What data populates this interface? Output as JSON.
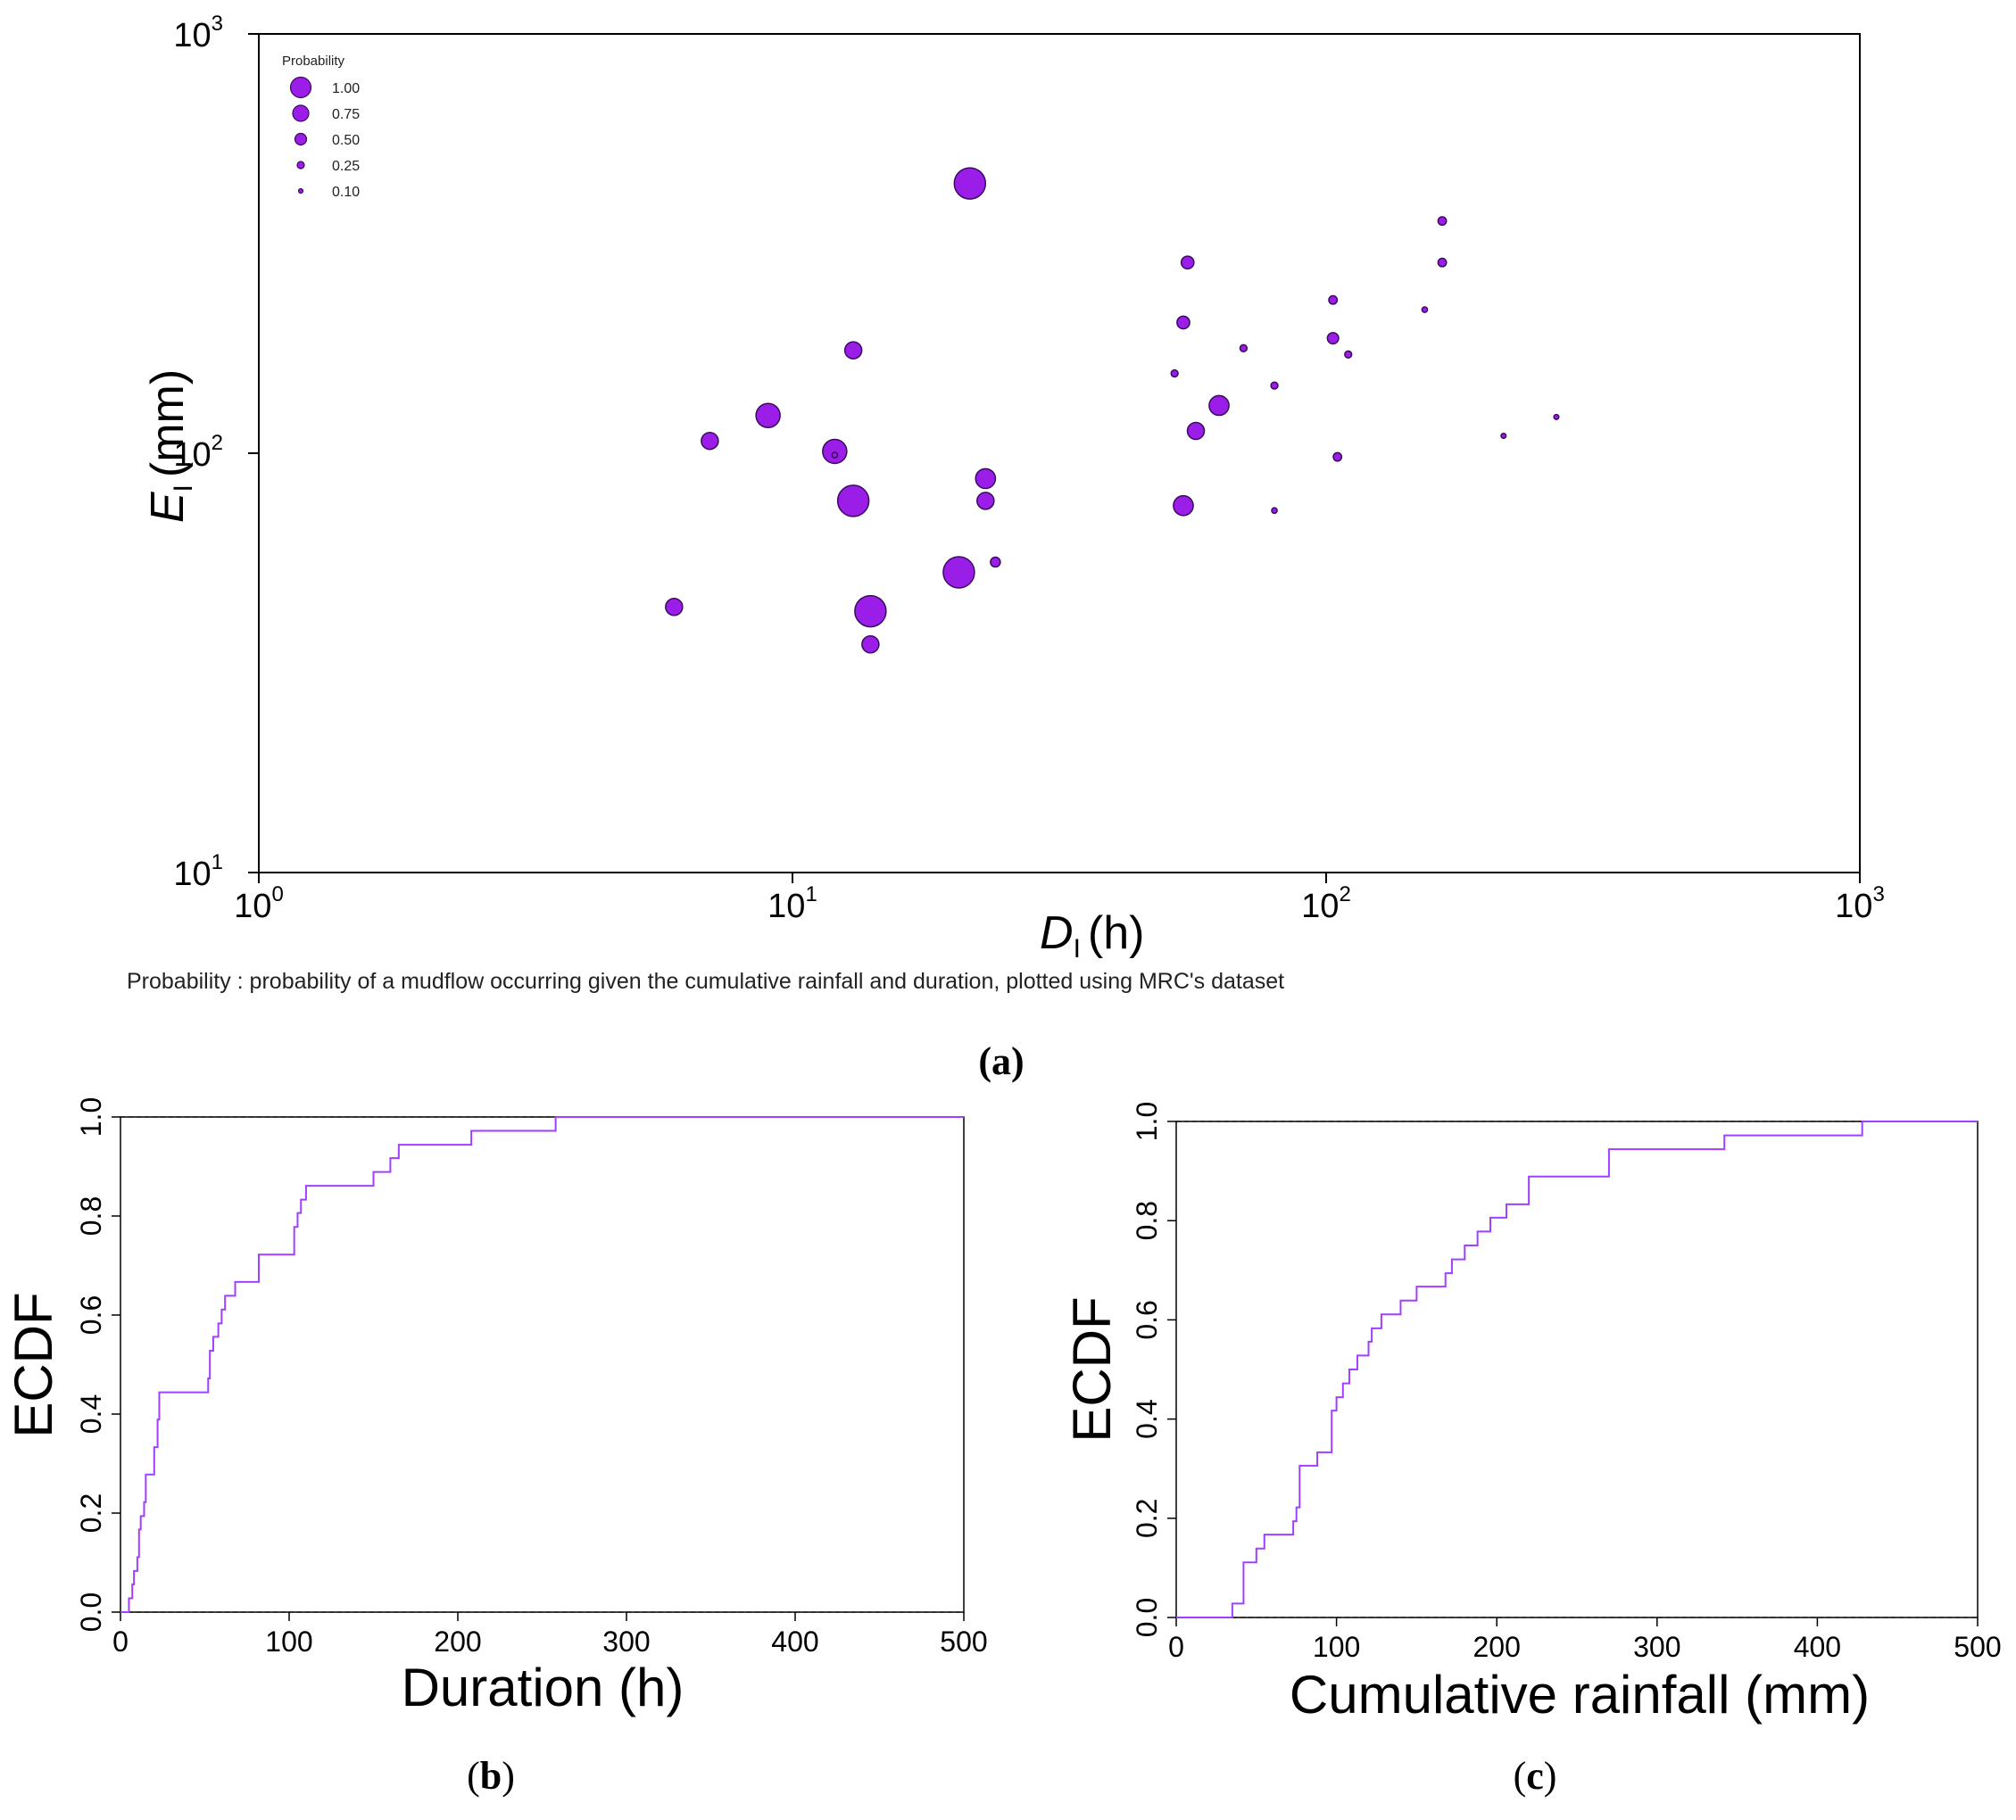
{
  "figure": {
    "caption_a": "(a)",
    "caption_b": "(b)",
    "caption_c": "(c)",
    "note_a": "Probability : probability of a mudflow occurring given the cumulative rainfall and duration, plotted using MRC's dataset"
  },
  "colors": {
    "marker_fill": "#9b1ee8",
    "marker_stroke": "#3a0a5e",
    "ecdf_line": "#a040ff",
    "axis": "#000000"
  },
  "chart_data": [
    {
      "id": "a",
      "type": "scatter",
      "scale": "log-log",
      "xlabel_main": "D",
      "xlabel_sub": "I",
      "xlabel_unit": "(h)",
      "ylabel_main": "E",
      "ylabel_sub": "I",
      "ylabel_unit": "(mm)",
      "xlim": [
        1,
        1000
      ],
      "ylim": [
        10,
        1000
      ],
      "xticks": [
        {
          "v": 1,
          "base": "10",
          "exp": "0"
        },
        {
          "v": 10,
          "base": "10",
          "exp": "1"
        },
        {
          "v": 100,
          "base": "10",
          "exp": "2"
        },
        {
          "v": 1000,
          "base": "10",
          "exp": "3"
        }
      ],
      "yticks": [
        {
          "v": 10,
          "base": "10",
          "exp": "1"
        },
        {
          "v": 100,
          "base": "10",
          "exp": "2"
        },
        {
          "v": 1000,
          "base": "10",
          "exp": "3"
        }
      ],
      "legend": {
        "title": "Probability",
        "position": "top-left",
        "entries": [
          {
            "label": "1.00",
            "p": 1.0
          },
          {
            "label": "0.75",
            "p": 0.75
          },
          {
            "label": "0.50",
            "p": 0.5
          },
          {
            "label": "0.25",
            "p": 0.25
          },
          {
            "label": "0.10",
            "p": 0.1
          }
        ]
      },
      "points": [
        {
          "x": 21.5,
          "y": 440,
          "p": 1.0
        },
        {
          "x": 13.0,
          "y": 77,
          "p": 1.0
        },
        {
          "x": 14.0,
          "y": 42,
          "p": 1.0
        },
        {
          "x": 20.5,
          "y": 52,
          "p": 1.0
        },
        {
          "x": 9.0,
          "y": 123,
          "p": 0.75
        },
        {
          "x": 12.0,
          "y": 101,
          "p": 0.75
        },
        {
          "x": 12.0,
          "y": 99,
          "p": 0.1
        },
        {
          "x": 13.0,
          "y": 176,
          "p": 0.5
        },
        {
          "x": 7.0,
          "y": 107,
          "p": 0.5
        },
        {
          "x": 6.0,
          "y": 43,
          "p": 0.5
        },
        {
          "x": 14.0,
          "y": 35,
          "p": 0.5
        },
        {
          "x": 23.0,
          "y": 87,
          "p": 0.6
        },
        {
          "x": 23.0,
          "y": 77,
          "p": 0.5
        },
        {
          "x": 24.0,
          "y": 55,
          "p": 0.25
        },
        {
          "x": 54,
          "y": 75,
          "p": 0.6
        },
        {
          "x": 57,
          "y": 113,
          "p": 0.5
        },
        {
          "x": 63,
          "y": 130,
          "p": 0.6
        },
        {
          "x": 55,
          "y": 285,
          "p": 0.35
        },
        {
          "x": 54,
          "y": 205,
          "p": 0.35
        },
        {
          "x": 52,
          "y": 155,
          "p": 0.15
        },
        {
          "x": 70,
          "y": 178,
          "p": 0.15
        },
        {
          "x": 80,
          "y": 145,
          "p": 0.15
        },
        {
          "x": 80,
          "y": 73,
          "p": 0.1
        },
        {
          "x": 103,
          "y": 232,
          "p": 0.2
        },
        {
          "x": 103,
          "y": 188,
          "p": 0.3
        },
        {
          "x": 105,
          "y": 98,
          "p": 0.2
        },
        {
          "x": 110,
          "y": 172,
          "p": 0.15
        },
        {
          "x": 153,
          "y": 220,
          "p": 0.1
        },
        {
          "x": 165,
          "y": 358,
          "p": 0.2
        },
        {
          "x": 165,
          "y": 285,
          "p": 0.2
        },
        {
          "x": 215,
          "y": 110,
          "p": 0.08
        },
        {
          "x": 270,
          "y": 122,
          "p": 0.08
        }
      ]
    },
    {
      "id": "b",
      "type": "line",
      "subtype": "ecdf",
      "xlabel": "Duration (h)",
      "ylabel": "ECDF",
      "xlim": [
        0,
        500
      ],
      "ylim": [
        0,
        1
      ],
      "xticks": [
        "0",
        "100",
        "200",
        "300",
        "400",
        "500"
      ],
      "yticks": [
        "0.0",
        "0.2",
        "0.4",
        "0.6",
        "0.8",
        "1.0"
      ],
      "reference_lines": [
        0,
        1
      ],
      "x": [
        5,
        7,
        8,
        10,
        11,
        12,
        14,
        15,
        20,
        22,
        23,
        52,
        53,
        55,
        58,
        60,
        62,
        68,
        82,
        103,
        105,
        107,
        110,
        150,
        160,
        165,
        208,
        258
      ],
      "y": [
        0.028,
        0.056,
        0.083,
        0.111,
        0.167,
        0.194,
        0.222,
        0.278,
        0.333,
        0.389,
        0.444,
        0.472,
        0.528,
        0.556,
        0.583,
        0.611,
        0.639,
        0.667,
        0.722,
        0.778,
        0.806,
        0.833,
        0.861,
        0.889,
        0.917,
        0.944,
        0.972,
        1.0
      ]
    },
    {
      "id": "c",
      "type": "line",
      "subtype": "ecdf",
      "xlabel": "Cumulative rainfall (mm)",
      "ylabel": "ECDF",
      "xlim": [
        0,
        500
      ],
      "ylim": [
        0,
        1
      ],
      "xticks": [
        "0",
        "100",
        "200",
        "300",
        "400",
        "500"
      ],
      "yticks": [
        "0.0",
        "0.2",
        "0.4",
        "0.6",
        "0.8",
        "1.0"
      ],
      "reference_lines": [
        0,
        1
      ],
      "x": [
        35,
        42,
        50,
        55,
        73,
        75,
        77,
        88,
        97,
        100,
        104,
        108,
        113,
        120,
        122,
        128,
        140,
        150,
        168,
        172,
        180,
        188,
        196,
        206,
        220,
        270,
        342,
        428
      ],
      "y": [
        0.028,
        0.111,
        0.139,
        0.167,
        0.194,
        0.222,
        0.306,
        0.333,
        0.417,
        0.444,
        0.472,
        0.5,
        0.528,
        0.556,
        0.583,
        0.611,
        0.639,
        0.667,
        0.694,
        0.722,
        0.75,
        0.778,
        0.806,
        0.833,
        0.889,
        0.944,
        0.972,
        1.0
      ]
    }
  ]
}
